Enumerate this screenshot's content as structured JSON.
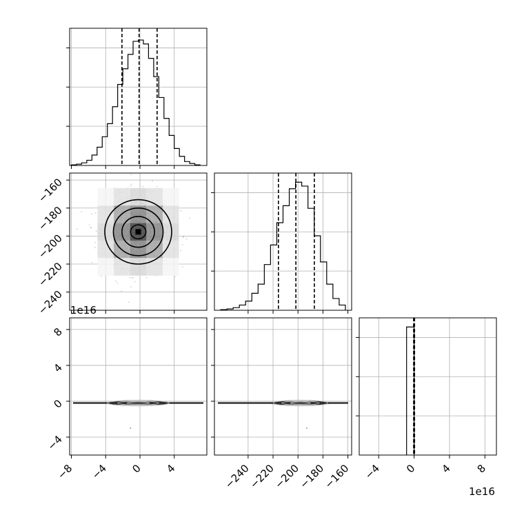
{
  "chart_data": [
    {
      "type": "histogram",
      "panel": "row0-col0",
      "xlim": [
        -8.2,
        7.8
      ],
      "ylim": [
        0,
        1
      ],
      "quantiles": [
        -2.1,
        -0.1,
        2.0
      ],
      "bin_edges": [
        -8.0,
        -7.0,
        -6.0,
        -5.0,
        -4.0,
        -3.0,
        -2.0,
        -1.0,
        0.0,
        1.0,
        2.0,
        3.0,
        4.0,
        5.0,
        6.0,
        7.0,
        7.8
      ],
      "heights": [
        0.01,
        0.02,
        0.04,
        0.12,
        0.31,
        0.62,
        0.88,
        0.97,
        0.96,
        0.79,
        0.52,
        0.27,
        0.12,
        0.04,
        0.02,
        0.01
      ],
      "bins": {
        "edges": [
          -8.0,
          -7.4,
          -6.8,
          -6.2,
          -5.6,
          -5.0,
          -4.4,
          -3.8,
          -3.2,
          -2.6,
          -2.0,
          -1.4,
          -0.8,
          -0.2,
          0.4,
          1.0,
          1.6,
          2.2,
          2.8,
          3.4,
          4.0,
          4.6,
          5.2,
          5.8,
          6.4,
          7.0
        ],
        "values": [
          0.005,
          0.01,
          0.02,
          0.04,
          0.08,
          0.14,
          0.22,
          0.32,
          0.45,
          0.62,
          0.74,
          0.85,
          0.95,
          0.96,
          0.93,
          0.82,
          0.68,
          0.52,
          0.36,
          0.23,
          0.13,
          0.07,
          0.03,
          0.015,
          0.005
        ]
      }
    },
    {
      "type": "histogram",
      "panel": "row1-col1",
      "xlim": [
        -267,
        -157
      ],
      "ylim": [
        0,
        1
      ],
      "quantiles": [
        -215.7,
        -201.7,
        -186.9
      ],
      "bins": {
        "edges": [
          -262,
          -257,
          -252,
          -247,
          -242,
          -237,
          -232,
          -227,
          -222,
          -217,
          -212,
          -207,
          -202,
          -197,
          -192,
          -187,
          -182,
          -177,
          -172,
          -167,
          -162
        ],
        "values": [
          0.005,
          0.01,
          0.02,
          0.04,
          0.07,
          0.13,
          0.2,
          0.35,
          0.5,
          0.67,
          0.8,
          0.93,
          0.98,
          0.95,
          0.78,
          0.57,
          0.37,
          0.2,
          0.09,
          0.04
        ]
      }
    },
    {
      "type": "histogram",
      "panel": "row2-col2",
      "xlim": [
        -6.2,
        9.3
      ],
      "ylim": [
        0,
        1
      ],
      "quantiles": [
        -0.05,
        0.0,
        0.05
      ],
      "bins": {
        "edges": [
          -0.85,
          -0.1,
          0.0
        ],
        "values": [
          0.98,
          0.98
        ]
      }
    },
    {
      "type": "scatter",
      "panel": "row1-col0",
      "xlim": [
        -8.2,
        7.8
      ],
      "ylim": [
        -253,
        -155
      ],
      "center": [
        -0.2,
        -197
      ],
      "spread": [
        1.9,
        12.5
      ],
      "contour_levels": [
        {
          "rx": 3.9,
          "ry": 23
        },
        {
          "rx": 2.9,
          "ry": 17
        },
        {
          "rx": 1.9,
          "ry": 11
        },
        {
          "rx": 0.9,
          "ry": 5
        }
      ],
      "density_grid": [
        [
          0.05,
          0.15,
          0.2,
          0.15,
          0.05
        ],
        [
          0.15,
          0.45,
          0.6,
          0.45,
          0.15
        ],
        [
          0.2,
          0.6,
          0.95,
          0.6,
          0.2
        ],
        [
          0.15,
          0.45,
          0.6,
          0.45,
          0.15
        ],
        [
          0.05,
          0.15,
          0.2,
          0.15,
          0.05
        ]
      ]
    },
    {
      "type": "scatter",
      "panel": "row2-col0",
      "xlim": [
        -8.2,
        7.8
      ],
      "ylim": [
        -6.0,
        9.3
      ],
      "center": [
        -0.2,
        -0.2
      ],
      "spread": [
        1.9,
        0.08
      ],
      "contour_levels": [
        {
          "rx": 3.6,
          "ry": 0.32
        },
        {
          "rx": 2.4,
          "ry": 0.22
        },
        {
          "rx": 1.3,
          "ry": 0.13
        }
      ],
      "outliers": [
        [
          -1.1,
          -3.0
        ]
      ]
    },
    {
      "type": "scatter",
      "panel": "row2-col1",
      "xlim": [
        -267,
        -157
      ],
      "ylim": [
        -6.0,
        9.3
      ],
      "center": [
        -198,
        -0.2
      ],
      "spread": [
        12.5,
        0.08
      ],
      "contour_levels": [
        {
          "rx": 22,
          "ry": 0.32
        },
        {
          "rx": 15,
          "ry": 0.22
        },
        {
          "rx": 8,
          "ry": 0.13
        }
      ],
      "outliers": [
        [
          -193,
          -3.0
        ]
      ]
    }
  ],
  "axes": {
    "col0_xticks": [
      "−8",
      "−4",
      "0",
      "4"
    ],
    "col0_xtick_values": [
      -8,
      -4,
      0,
      4
    ],
    "col1_xticks": [
      "−240",
      "−220",
      "−200",
      "−180",
      "−160"
    ],
    "col1_xtick_values": [
      -240,
      -220,
      -200,
      -180,
      -160
    ],
    "col2_xticks": [
      "−4",
      "0",
      "4",
      "8"
    ],
    "col2_xtick_values": [
      -4,
      0,
      4,
      8
    ],
    "row1_yticks": [
      "−160",
      "−180",
      "−200",
      "−220",
      "−240"
    ],
    "row1_ytick_values": [
      -160,
      -180,
      -200,
      -220,
      -240
    ],
    "row2_yticks": [
      "8",
      "4",
      "0",
      "−4"
    ],
    "row2_ytick_values": [
      8,
      4,
      0,
      -4
    ],
    "offset_label_row2_y": "1e16",
    "offset_label_col2_x": "1e16"
  }
}
